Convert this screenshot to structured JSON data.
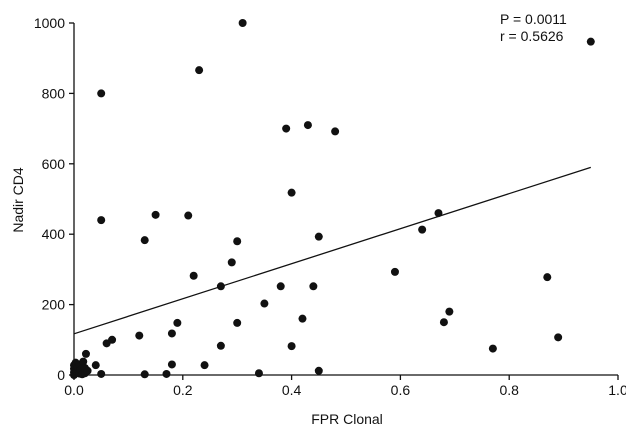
{
  "chart_data": {
    "type": "scatter",
    "title": "",
    "xlabel": "FPR Clonal",
    "ylabel": "Nadir CD4",
    "xlim": [
      0,
      1.0
    ],
    "ylim": [
      0,
      1000
    ],
    "x_ticks": [
      0.0,
      0.2,
      0.4,
      0.6,
      0.8,
      1.0
    ],
    "x_tick_labels": [
      "0.0",
      "0.2",
      "0.4",
      "0.6",
      "0.8",
      "1.0"
    ],
    "y_ticks": [
      0,
      200,
      400,
      600,
      800,
      1000
    ],
    "y_tick_labels": [
      "0",
      "200",
      "400",
      "600",
      "800",
      "1000"
    ],
    "grid": false,
    "annotations": [
      "P = 0.0011",
      "r = 0.5626"
    ],
    "regression_line": {
      "x": [
        0.0,
        0.95
      ],
      "y": [
        117,
        590
      ]
    },
    "colors": {
      "points": "#111111",
      "line": "#111111",
      "axes": "#111111"
    },
    "points": [
      {
        "x": 0.0,
        "y": 0
      },
      {
        "x": 0.0,
        "y": 8
      },
      {
        "x": 0.0,
        "y": 18
      },
      {
        "x": 0.0,
        "y": 28
      },
      {
        "x": 0.003,
        "y": 35
      },
      {
        "x": 0.005,
        "y": 10
      },
      {
        "x": 0.007,
        "y": 22
      },
      {
        "x": 0.01,
        "y": 4
      },
      {
        "x": 0.01,
        "y": 30
      },
      {
        "x": 0.012,
        "y": 15
      },
      {
        "x": 0.015,
        "y": 2
      },
      {
        "x": 0.017,
        "y": 38
      },
      {
        "x": 0.02,
        "y": 5
      },
      {
        "x": 0.02,
        "y": 20
      },
      {
        "x": 0.022,
        "y": 60
      },
      {
        "x": 0.025,
        "y": 12
      },
      {
        "x": 0.04,
        "y": 28
      },
      {
        "x": 0.05,
        "y": 3
      },
      {
        "x": 0.05,
        "y": 800
      },
      {
        "x": 0.05,
        "y": 440
      },
      {
        "x": 0.06,
        "y": 90
      },
      {
        "x": 0.07,
        "y": 100
      },
      {
        "x": 0.12,
        "y": 112
      },
      {
        "x": 0.13,
        "y": 383
      },
      {
        "x": 0.13,
        "y": 2
      },
      {
        "x": 0.15,
        "y": 455
      },
      {
        "x": 0.17,
        "y": 3
      },
      {
        "x": 0.18,
        "y": 30
      },
      {
        "x": 0.18,
        "y": 118
      },
      {
        "x": 0.19,
        "y": 148
      },
      {
        "x": 0.21,
        "y": 453
      },
      {
        "x": 0.22,
        "y": 282
      },
      {
        "x": 0.23,
        "y": 866
      },
      {
        "x": 0.24,
        "y": 28
      },
      {
        "x": 0.27,
        "y": 252
      },
      {
        "x": 0.27,
        "y": 83
      },
      {
        "x": 0.29,
        "y": 320
      },
      {
        "x": 0.3,
        "y": 380
      },
      {
        "x": 0.3,
        "y": 148
      },
      {
        "x": 0.31,
        "y": 1000
      },
      {
        "x": 0.34,
        "y": 5
      },
      {
        "x": 0.35,
        "y": 203
      },
      {
        "x": 0.38,
        "y": 252
      },
      {
        "x": 0.39,
        "y": 700
      },
      {
        "x": 0.4,
        "y": 518
      },
      {
        "x": 0.4,
        "y": 82
      },
      {
        "x": 0.42,
        "y": 160
      },
      {
        "x": 0.43,
        "y": 710
      },
      {
        "x": 0.44,
        "y": 252
      },
      {
        "x": 0.45,
        "y": 393
      },
      {
        "x": 0.45,
        "y": 12
      },
      {
        "x": 0.48,
        "y": 692
      },
      {
        "x": 0.59,
        "y": 293
      },
      {
        "x": 0.64,
        "y": 413
      },
      {
        "x": 0.67,
        "y": 460
      },
      {
        "x": 0.68,
        "y": 150
      },
      {
        "x": 0.69,
        "y": 180
      },
      {
        "x": 0.77,
        "y": 75
      },
      {
        "x": 0.87,
        "y": 278
      },
      {
        "x": 0.89,
        "y": 107
      },
      {
        "x": 0.95,
        "y": 947
      }
    ]
  }
}
